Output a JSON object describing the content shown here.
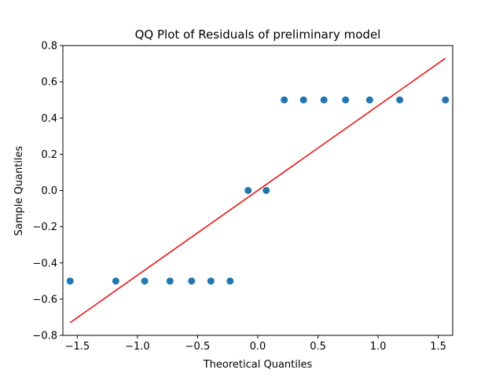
{
  "chart_data": {
    "type": "scatter",
    "title": "QQ Plot of Residuals of preliminary model",
    "xlabel": "Theoretical Quantiles",
    "ylabel": "Sample Quantiles",
    "xlim": [
      -1.62,
      1.62
    ],
    "ylim": [
      -0.8,
      0.8
    ],
    "grid": false,
    "x_ticks": [
      -1.5,
      -1.0,
      -0.5,
      0.0,
      0.5,
      1.0,
      1.5
    ],
    "x_tick_labels": [
      "−1.5",
      "−1.0",
      "−0.5",
      "0.0",
      "0.5",
      "1.0",
      "1.5"
    ],
    "y_ticks": [
      -0.8,
      -0.6,
      -0.4,
      -0.2,
      0.0,
      0.2,
      0.4,
      0.6,
      0.8
    ],
    "y_tick_labels": [
      "−0.8",
      "−0.6",
      "−0.4",
      "−0.2",
      "0.0",
      "0.2",
      "0.4",
      "0.6",
      "0.8"
    ],
    "points": {
      "x": [
        -1.56,
        -1.18,
        -0.94,
        -0.73,
        -0.55,
        -0.39,
        -0.23,
        -0.08,
        0.07,
        0.22,
        0.38,
        0.55,
        0.73,
        0.93,
        1.18,
        1.56
      ],
      "y": [
        -0.5,
        -0.5,
        -0.5,
        -0.5,
        -0.5,
        -0.5,
        -0.5,
        0.0,
        0.0,
        0.5,
        0.5,
        0.5,
        0.5,
        0.5,
        0.5,
        0.5
      ],
      "color": "#1f77b4"
    },
    "reference_line": {
      "x": [
        -1.56,
        1.56
      ],
      "y": [
        -0.73,
        0.73
      ],
      "color": "#ff0000"
    }
  }
}
